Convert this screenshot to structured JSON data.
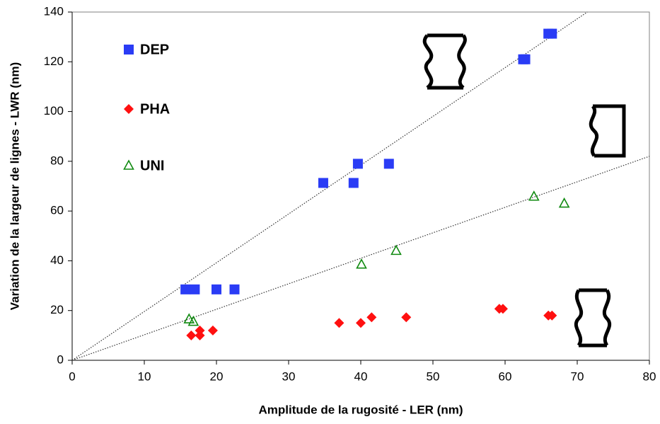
{
  "chart_data": {
    "type": "scatter",
    "x_label": "Amplitude de la rugosité - LER (nm)",
    "y_label": "Variation de la largeur de lignes - LWR (nm)",
    "xlim": [
      0,
      80
    ],
    "xticks": [
      0,
      10,
      20,
      30,
      40,
      50,
      60,
      70,
      80
    ],
    "ylim": [
      0,
      140
    ],
    "yticks": [
      0,
      20,
      40,
      60,
      80,
      100,
      120,
      140
    ],
    "grid": false,
    "legend": "upper left",
    "series": [
      {
        "name": "DEP",
        "color": "#2a3cf5",
        "marker": "square",
        "x": [
          15.7,
          17,
          20,
          22.5,
          34.8,
          39,
          39.6,
          43.9,
          62.5,
          62.8,
          66,
          66.5
        ],
        "values": [
          28.5,
          28.5,
          28.5,
          28.5,
          71.3,
          71.3,
          79,
          79,
          121,
          121,
          131.3,
          131.3
        ]
      },
      {
        "name": "PHA",
        "color": "#ff1010",
        "marker": "diamond",
        "x": [
          16.5,
          17.7,
          17.7,
          19.5,
          37,
          40,
          41.5,
          46.3,
          59.2,
          59.7,
          66,
          66.5
        ],
        "values": [
          10,
          10,
          12,
          12,
          15,
          15,
          17.3,
          17.3,
          20.7,
          20.7,
          18,
          18
        ]
      },
      {
        "name": "UNI",
        "color": "#108a10",
        "marker": "triangle",
        "x": [
          16.2,
          16.8,
          40.1,
          44.9,
          64,
          68.2
        ],
        "values": [
          16.5,
          15.5,
          38.5,
          44,
          65.8,
          63
        ]
      }
    ],
    "trendlines": [
      {
        "x": [
          0,
          71.4
        ],
        "y": [
          0,
          140
        ]
      },
      {
        "x": [
          0,
          80
        ],
        "y": [
          0,
          82
        ]
      }
    ]
  }
}
